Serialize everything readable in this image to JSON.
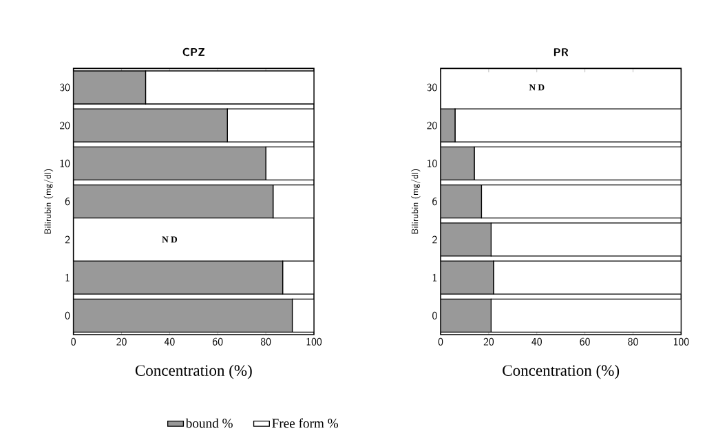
{
  "chart_data": [
    {
      "type": "bar",
      "title": "CPZ",
      "orientation": "horizontal",
      "stacked": true,
      "ylabel": "Bilirubin (mg/dl)",
      "xlabel": "Concentration (%)",
      "categories": [
        "30",
        "20",
        "10",
        "6",
        "2",
        "1",
        "0"
      ],
      "series": [
        {
          "name": "bound %",
          "color": "#999999",
          "values": [
            30,
            64,
            80,
            83,
            null,
            87,
            91
          ]
        },
        {
          "name": "Free form %",
          "color": "#ffffff",
          "values": [
            70,
            36,
            20,
            17,
            null,
            13,
            9
          ]
        }
      ],
      "xlim": [
        0,
        100
      ],
      "xticks": [
        0,
        20,
        40,
        60,
        80,
        100
      ],
      "legend": "bottom",
      "annotations": [
        "N D"
      ]
    },
    {
      "type": "bar",
      "title": "PR",
      "orientation": "horizontal",
      "stacked": true,
      "ylabel": "Bilirubin (mg/dl)",
      "xlabel": "Concentration (%)",
      "categories": [
        "30",
        "20",
        "10",
        "6",
        "2",
        "1",
        "0"
      ],
      "series": [
        {
          "color": "#999999",
          "values": [
            null,
            6,
            14,
            17,
            21,
            22,
            21
          ]
        },
        {
          "color": "#ffffff",
          "values": [
            null,
            94,
            86,
            83,
            79,
            78,
            79
          ]
        }
      ],
      "xlim": [
        0,
        100
      ],
      "xticks": [
        0,
        20,
        40,
        60,
        80,
        100
      ],
      "annotations": [
        "N D"
      ]
    }
  ]
}
